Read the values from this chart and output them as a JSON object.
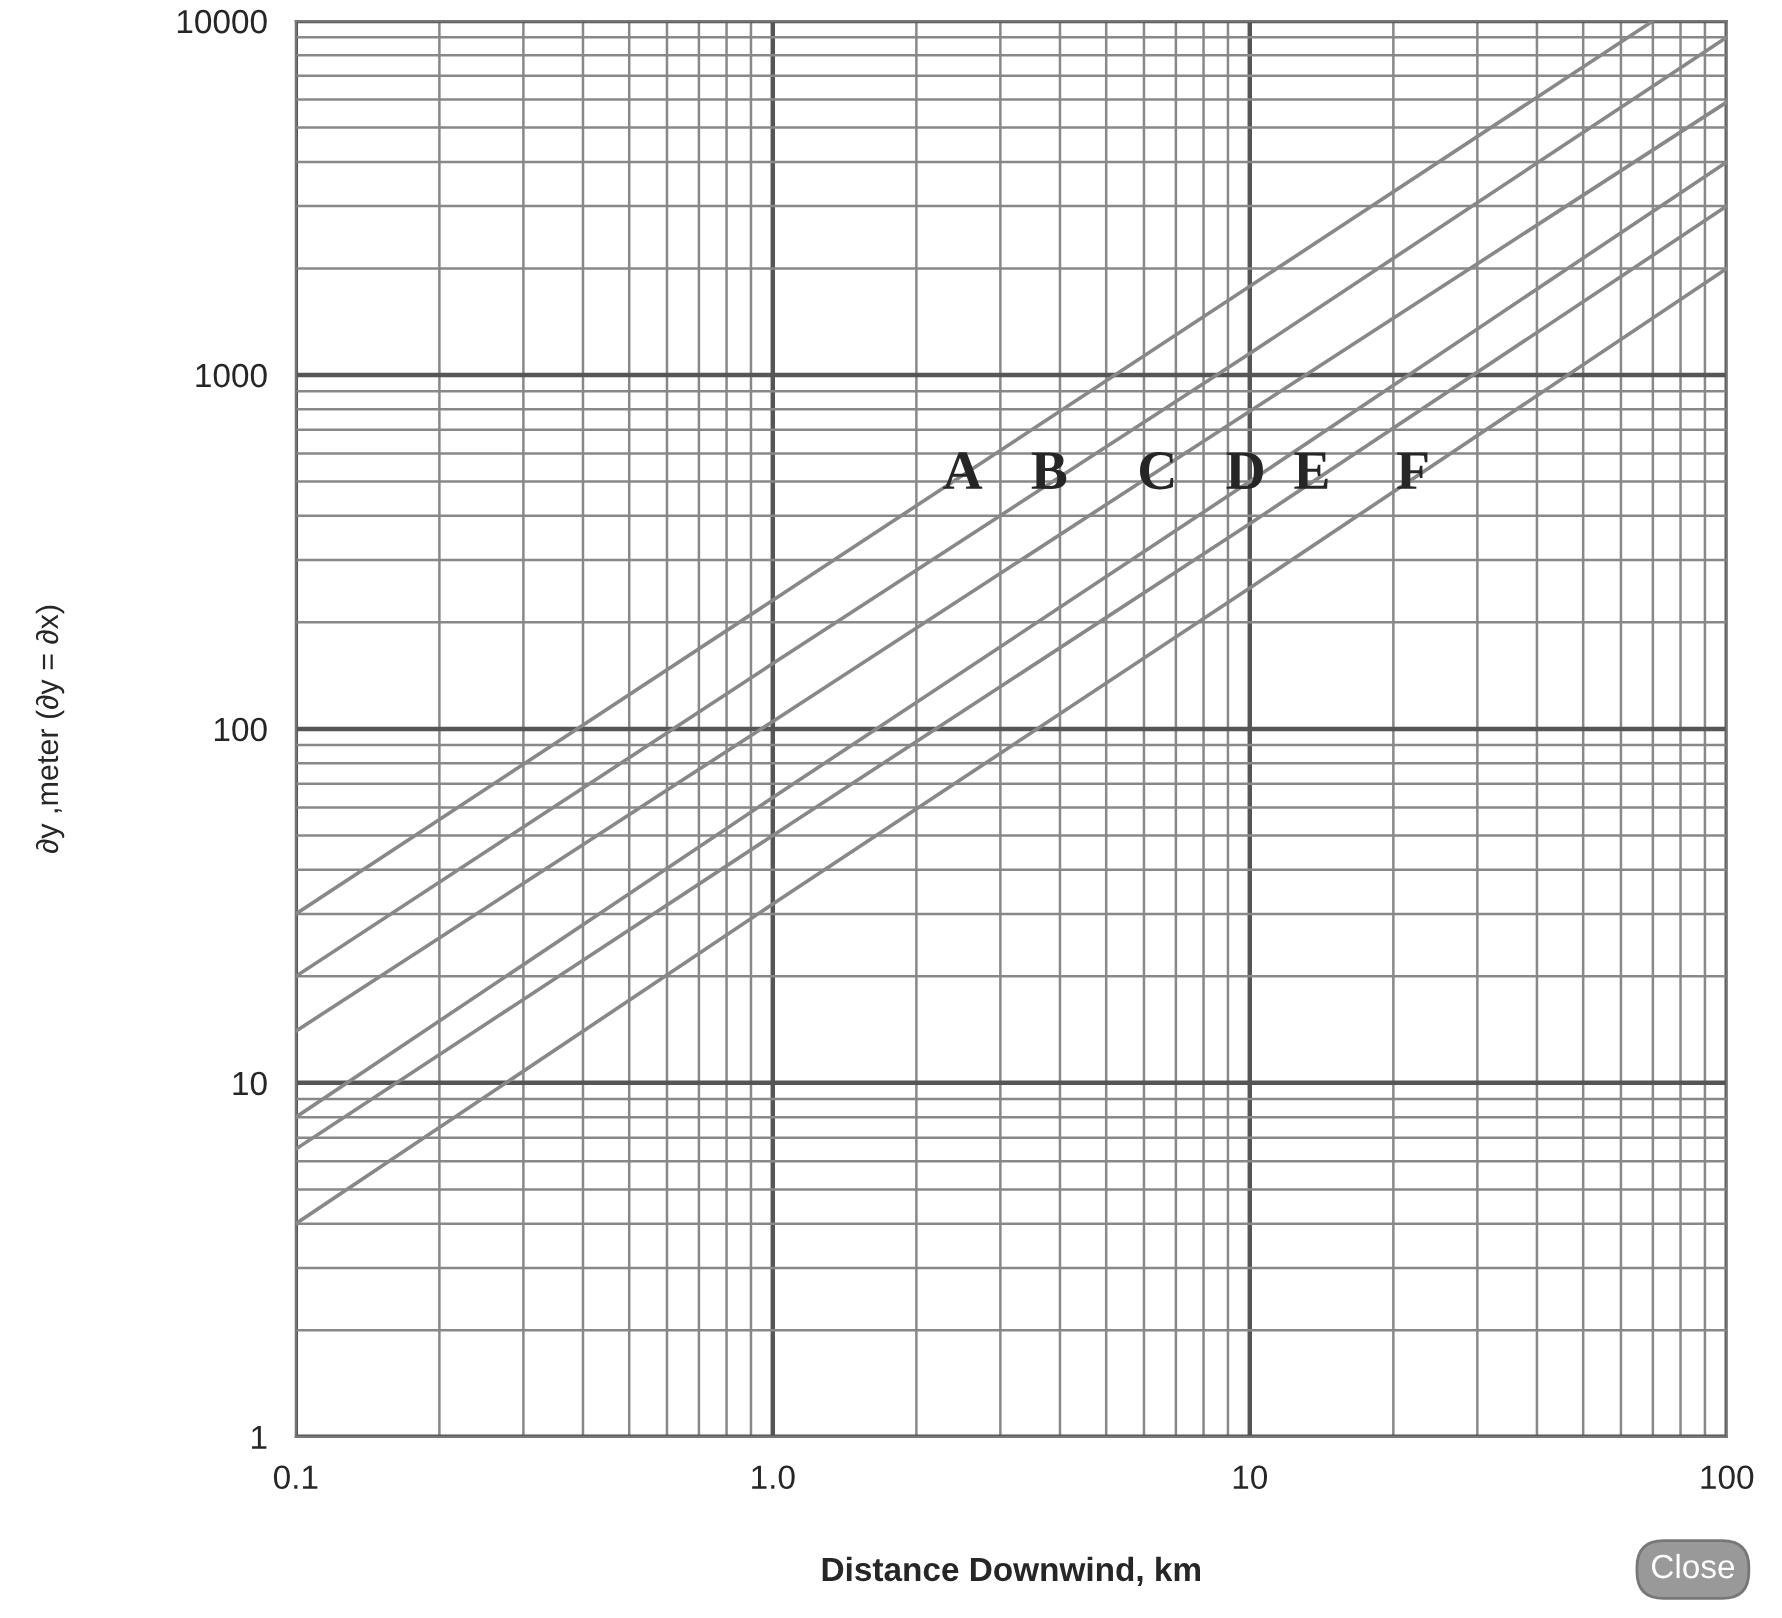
{
  "chart_data": {
    "type": "line",
    "xlabel": "Distance Downwind, km",
    "ylabel": "∂y ,meter (∂y = ∂x)",
    "log": "xy",
    "grid": true,
    "line_style": "solid",
    "marker": "none",
    "xlim": [
      0.1,
      100
    ],
    "ylim": [
      1,
      10000
    ],
    "xticks": [
      0.1,
      {
        "value": 1,
        "label": "1.0"
      },
      10,
      100
    ],
    "yticks": [
      1,
      10,
      100,
      1000,
      10000
    ],
    "series": [
      {
        "color": "#888888",
        "x": [
          0.1,
          1,
          70
        ],
        "values": [
          30,
          231,
          10000
        ]
      },
      {
        "color": "#888888",
        "x": [
          0.1,
          1,
          10,
          100
        ],
        "values": [
          20,
          153,
          1150,
          9000
        ]
      },
      {
        "color": "#888888",
        "x": [
          0.1,
          1,
          10,
          100
        ],
        "values": [
          14,
          105,
          790,
          5900
        ]
      },
      {
        "color": "#888888",
        "x": [
          0.1,
          1,
          10,
          100
        ],
        "values": [
          8,
          64,
          500,
          4000
        ]
      },
      {
        "color": "#888888",
        "x": [
          0.1,
          1,
          10,
          100
        ],
        "values": [
          6.5,
          50,
          380,
          3000
        ]
      },
      {
        "color": "#888888",
        "x": [
          0.1,
          1,
          10,
          100
        ],
        "values": [
          4,
          32,
          250,
          2000
        ]
      }
    ],
    "annotations": [
      {
        "text": "A",
        "x": 2.5,
        "y": 520
      },
      {
        "text": "B",
        "x": 3.8,
        "y": 520
      },
      {
        "text": "C",
        "x": 6.4,
        "y": 520
      },
      {
        "text": "D",
        "x": 9.8,
        "y": 520
      },
      {
        "text": "E",
        "x": 13.5,
        "y": 520
      },
      {
        "text": "F",
        "x": 22,
        "y": 520
      },
      "Close"
    ]
  }
}
